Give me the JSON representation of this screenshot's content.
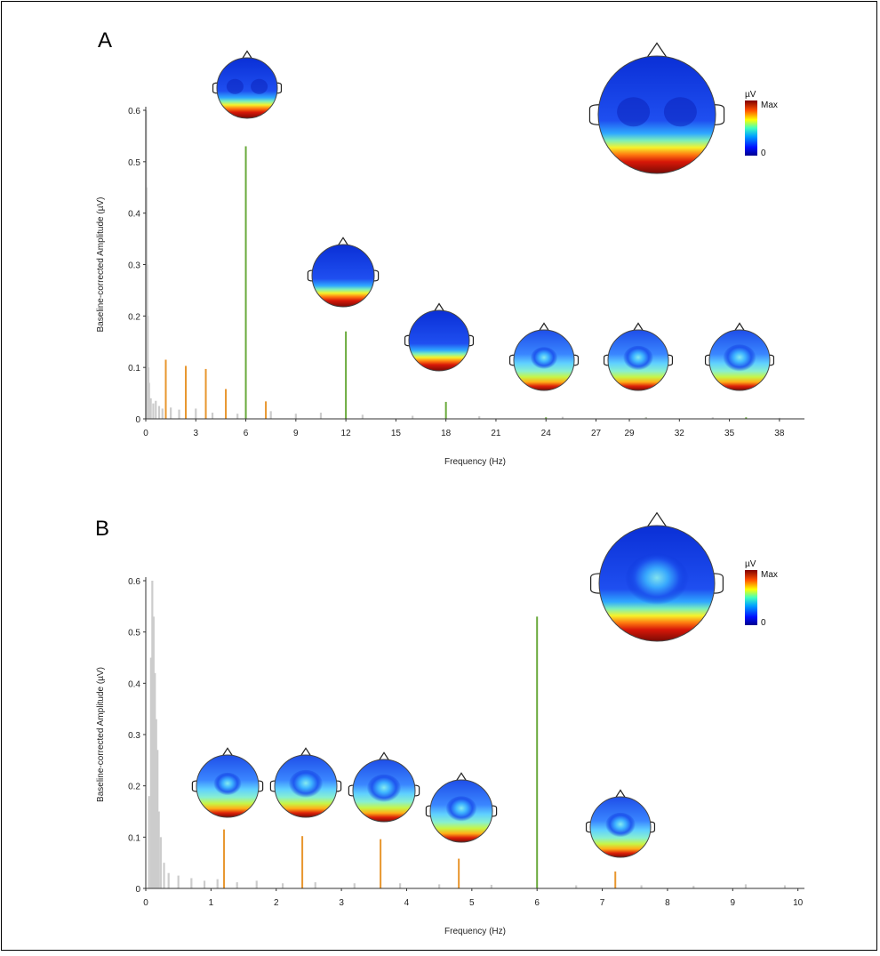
{
  "figure": {
    "panels": [
      {
        "label": "A",
        "xlabel": "Frequency (Hz)",
        "ylabel": "Baseline-corrected Amplitude (µV)",
        "yticks": [
          "0",
          "0.1",
          "0.2",
          "0.3",
          "0.4",
          "0.5",
          "0.6"
        ],
        "xticks": [
          "0",
          "3",
          "6",
          "9",
          "12",
          "15",
          "18",
          "21",
          "24",
          "27",
          "29",
          "32",
          "35",
          "38"
        ],
        "colorbar": {
          "unit": "µV",
          "max_label": "Max",
          "min_label": "0"
        }
      },
      {
        "label": "B",
        "xlabel": "Frequency (Hz)",
        "ylabel": "Baseline-corrected Amplitude (µV)",
        "yticks": [
          "0",
          "0.1",
          "0.2",
          "0.3",
          "0.4",
          "0.5",
          "0.6"
        ],
        "xticks": [
          "0",
          "1",
          "2",
          "3",
          "4",
          "5",
          "6",
          "7",
          "8",
          "9",
          "10"
        ],
        "colorbar": {
          "unit": "µV",
          "max_label": "Max",
          "min_label": "0"
        }
      }
    ]
  },
  "chart_data": [
    {
      "type": "bar",
      "panel": "A",
      "xlim": [
        0,
        39.5
      ],
      "ylim": [
        0,
        0.6
      ],
      "xlabel": "Frequency (Hz)",
      "ylabel": "Baseline-corrected Amplitude (µV)",
      "series": [
        {
          "role": "base",
          "color": "#6aaa3c",
          "x": [
            6.0,
            12.0,
            18.0,
            24.0,
            30.0,
            36.0
          ],
          "values": [
            0.53,
            0.17,
            0.033,
            0.003,
            0.003,
            0.003
          ]
        },
        {
          "role": "oddball",
          "color": "#e8962e",
          "x": [
            1.2,
            2.4,
            3.6,
            4.8,
            7.2
          ],
          "values": [
            0.115,
            0.103,
            0.097,
            0.058,
            0.034
          ]
        },
        {
          "role": "background",
          "color": "#cccccc",
          "x": [
            0.02,
            0.05,
            0.08,
            0.12,
            0.16,
            0.2,
            0.3,
            0.45,
            0.6,
            0.8,
            1.0,
            1.5,
            2.0,
            3.0,
            4.0,
            5.5,
            7.5,
            9.0,
            10.5,
            13.0,
            16.0,
            20.0,
            25.0,
            30.0,
            34.0,
            38.0
          ],
          "values": [
            0.6,
            0.45,
            0.3,
            0.2,
            0.1,
            0.07,
            0.04,
            0.03,
            0.035,
            0.025,
            0.02,
            0.022,
            0.018,
            0.02,
            0.012,
            0.01,
            0.015,
            0.01,
            0.012,
            0.008,
            0.006,
            0.005,
            0.004,
            0.003,
            0.003,
            0.002
          ]
        }
      ],
      "colormap": "jet",
      "grid": false
    },
    {
      "type": "bar",
      "panel": "B",
      "xlim": [
        0,
        10.1
      ],
      "ylim": [
        0,
        0.6
      ],
      "xlabel": "Frequency (Hz)",
      "ylabel": "Baseline-corrected Amplitude (µV)",
      "series": [
        {
          "role": "base",
          "color": "#6aaa3c",
          "x": [
            6.0
          ],
          "values": [
            0.53
          ]
        },
        {
          "role": "oddball",
          "color": "#e8962e",
          "x": [
            1.2,
            2.4,
            3.6,
            4.8,
            7.2
          ],
          "values": [
            0.115,
            0.102,
            0.096,
            0.058,
            0.033
          ]
        },
        {
          "role": "background",
          "color": "#cccccc",
          "x": [
            0.05,
            0.08,
            0.1,
            0.12,
            0.14,
            0.16,
            0.18,
            0.2,
            0.23,
            0.28,
            0.35,
            0.5,
            0.7,
            0.9,
            1.1,
            1.4,
            1.7,
            2.1,
            2.6,
            3.2,
            3.9,
            4.5,
            5.3,
            6.6,
            7.6,
            8.4,
            9.2,
            9.8
          ],
          "values": [
            0.18,
            0.45,
            0.6,
            0.53,
            0.42,
            0.33,
            0.27,
            0.15,
            0.1,
            0.05,
            0.03,
            0.025,
            0.02,
            0.015,
            0.018,
            0.012,
            0.015,
            0.01,
            0.012,
            0.01,
            0.01,
            0.008,
            0.007,
            0.006,
            0.006,
            0.005,
            0.008,
            0.006
          ]
        }
      ],
      "colormap": "jet",
      "grid": false
    }
  ]
}
